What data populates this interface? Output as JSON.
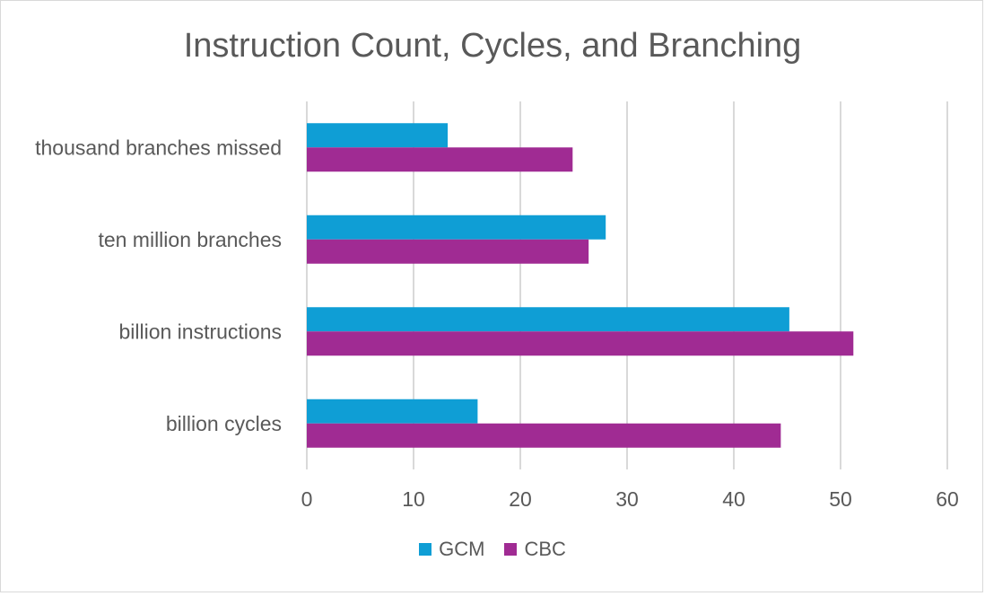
{
  "chart_data": {
    "type": "bar",
    "orientation": "horizontal",
    "title": "Instruction Count, Cycles, and Branching",
    "categories": [
      "thousand branches missed",
      "ten million branches",
      "billion instructions",
      "billion cycles"
    ],
    "series": [
      {
        "name": "GCM",
        "color": "#0f9ed5",
        "values": [
          13.2,
          28.0,
          45.2,
          16.0
        ]
      },
      {
        "name": "CBC",
        "color": "#a02b93",
        "values": [
          24.9,
          26.4,
          51.2,
          44.4
        ]
      }
    ],
    "xlim": [
      0,
      60
    ],
    "xticks": [
      "0",
      "10",
      "20",
      "30",
      "40",
      "50",
      "60"
    ],
    "grid": true,
    "legend_position": "bottom"
  }
}
